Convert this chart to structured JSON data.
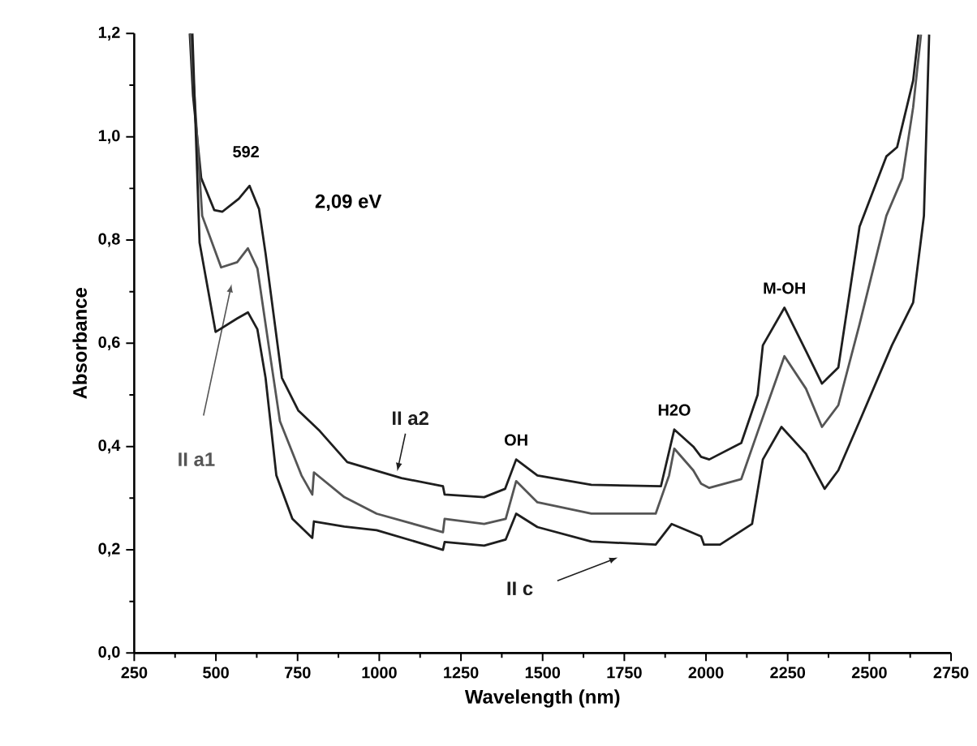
{
  "chart_data": {
    "type": "line",
    "xlabel": "Wavelength (nm)",
    "ylabel": "Absorbance",
    "xlim": [
      250,
      2750
    ],
    "ylim": [
      0,
      1.2
    ],
    "xticks": [
      250,
      500,
      750,
      1000,
      1250,
      1500,
      1750,
      2000,
      2250,
      2500,
      2750
    ],
    "yticks": [
      {
        "value": 0,
        "label": "0,0"
      },
      {
        "value": 0.2,
        "label": "0,2"
      },
      {
        "value": 0.4,
        "label": "0,4"
      },
      {
        "value": 0.6,
        "label": "0,6"
      },
      {
        "value": 0.8,
        "label": "0,8"
      },
      {
        "value": 1.0,
        "label": "1,0"
      },
      {
        "value": 1.2,
        "label": "1,2"
      }
    ],
    "marker": "none",
    "line_style": "solid",
    "legend": false,
    "grid": false,
    "series": [
      {
        "name": "II a2",
        "color": "#1e1e1e",
        "x": [
          420,
          430,
          455,
          495,
          520,
          570,
          603,
          632,
          652,
          702,
          752,
          818,
          902,
          1068,
          1195,
          1200,
          1321,
          1385,
          1419,
          1484,
          1649,
          1862,
          1903,
          1961,
          1985,
          2010,
          2108,
          2158,
          2174,
          2240,
          2306,
          2355,
          2405,
          2470,
          2552,
          2585,
          2634,
          2650
        ],
        "values": [
          1.2,
          1.08,
          0.92,
          0.858,
          0.855,
          0.88,
          0.905,
          0.86,
          0.774,
          0.533,
          0.47,
          0.43,
          0.37,
          0.339,
          0.323,
          0.307,
          0.302,
          0.318,
          0.375,
          0.344,
          0.326,
          0.323,
          0.433,
          0.4,
          0.38,
          0.375,
          0.407,
          0.5,
          0.596,
          0.669,
          0.585,
          0.522,
          0.553,
          0.826,
          0.962,
          0.98,
          1.109,
          1.198
        ]
      },
      {
        "name": "II a1",
        "color": "#555555",
        "x": [
          422,
          458,
          516,
          565,
          598,
          627,
          664,
          696,
          762,
          795,
          800,
          893,
          992,
          1195,
          1200,
          1321,
          1387,
          1419,
          1484,
          1649,
          1846,
          1887,
          1903,
          1961,
          1985,
          2010,
          2108,
          2158,
          2240,
          2306,
          2355,
          2405,
          2470,
          2552,
          2601,
          2634,
          2658
        ],
        "values": [
          1.2,
          0.847,
          0.747,
          0.757,
          0.784,
          0.745,
          0.585,
          0.449,
          0.344,
          0.307,
          0.35,
          0.302,
          0.27,
          0.234,
          0.26,
          0.25,
          0.26,
          0.333,
          0.292,
          0.27,
          0.27,
          0.344,
          0.396,
          0.354,
          0.328,
          0.32,
          0.337,
          0.428,
          0.575,
          0.512,
          0.438,
          0.48,
          0.637,
          0.847,
          0.92,
          1.057,
          1.198
        ]
      },
      {
        "name": "II c",
        "color": "#1e1e1e",
        "x": [
          428,
          450,
          499,
          565,
          598,
          627,
          652,
          685,
          734,
          795,
          800,
          893,
          992,
          1195,
          1200,
          1321,
          1387,
          1419,
          1484,
          1649,
          1846,
          1895,
          1944,
          1985,
          1994,
          2043,
          2141,
          2174,
          2231,
          2306,
          2363,
          2405,
          2470,
          2569,
          2634,
          2667,
          2683
        ],
        "values": [
          1.2,
          0.795,
          0.622,
          0.648,
          0.66,
          0.627,
          0.533,
          0.344,
          0.26,
          0.223,
          0.255,
          0.245,
          0.238,
          0.2,
          0.215,
          0.208,
          0.22,
          0.27,
          0.244,
          0.216,
          0.21,
          0.25,
          0.237,
          0.226,
          0.21,
          0.21,
          0.25,
          0.375,
          0.438,
          0.386,
          0.318,
          0.354,
          0.449,
          0.596,
          0.679,
          0.847,
          1.198
        ]
      }
    ],
    "annotations": [
      {
        "text": "592",
        "x": 592,
        "y": 0.905
      },
      "2,09 eV",
      {
        "text": "OH",
        "x": 1419,
        "y": 0.375
      },
      {
        "text": "H2O",
        "x": 1903,
        "y": 0.433
      },
      {
        "text": "M-OH",
        "x": 2240,
        "y": 0.669
      }
    ]
  }
}
